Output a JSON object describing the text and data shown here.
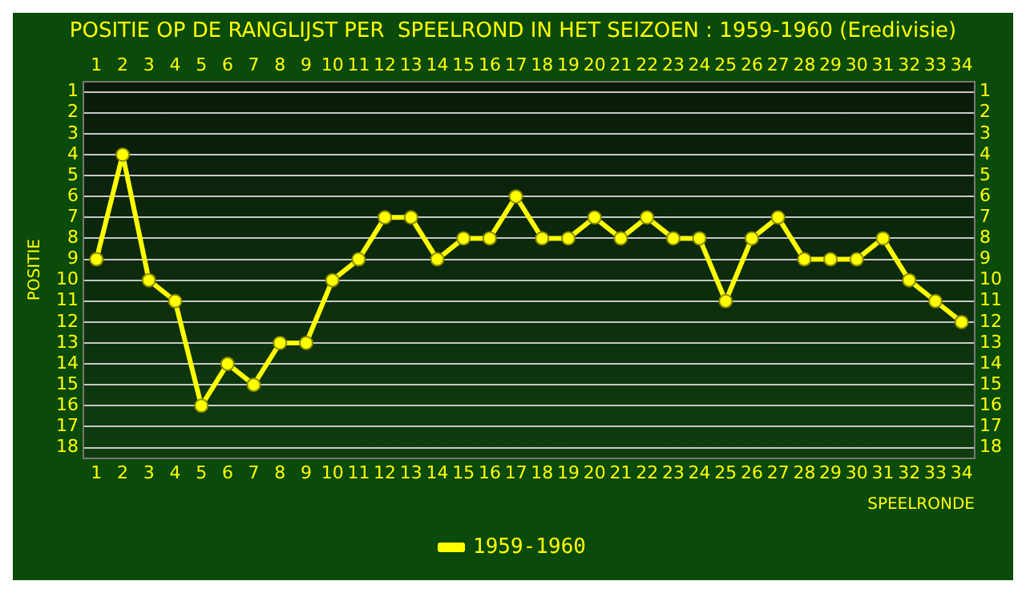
{
  "chart_data": {
    "type": "line",
    "title": "POSITIE OP DE RANGLIJST PER  SPEELROND IN HET SEIZOEN : 1959-1960 (Eredivisie)",
    "xlabel": "SPEELRONDE",
    "ylabel": "POSITIE",
    "x": [
      1,
      2,
      3,
      4,
      5,
      6,
      7,
      8,
      9,
      10,
      11,
      12,
      13,
      14,
      15,
      16,
      17,
      18,
      19,
      20,
      21,
      22,
      23,
      24,
      25,
      26,
      27,
      28,
      29,
      30,
      31,
      32,
      33,
      34
    ],
    "series": [
      {
        "name": "1959-1960",
        "color": "#ffff00",
        "values": [
          9,
          4,
          10,
          11,
          16,
          14,
          15,
          13,
          13,
          10,
          9,
          7,
          7,
          9,
          8,
          8,
          6,
          8,
          8,
          7,
          8,
          7,
          8,
          8,
          11,
          8,
          7,
          9,
          9,
          9,
          8,
          10,
          11,
          12
        ]
      }
    ],
    "xlim": [
      0.5,
      34.5
    ],
    "xticks": [
      1,
      2,
      3,
      4,
      5,
      6,
      7,
      8,
      9,
      10,
      11,
      12,
      13,
      14,
      15,
      16,
      17,
      18,
      19,
      20,
      21,
      22,
      23,
      24,
      25,
      26,
      27,
      28,
      29,
      30,
      31,
      32,
      33,
      34
    ],
    "x2lim": [
      0.5,
      34.5
    ],
    "x2ticks": [
      1,
      2,
      3,
      4,
      5,
      6,
      7,
      8,
      9,
      10,
      11,
      12,
      13,
      14,
      15,
      16,
      17,
      18,
      19,
      20,
      21,
      22,
      23,
      24,
      25,
      26,
      27,
      28,
      29,
      30,
      31,
      32,
      33,
      34
    ],
    "ylim": [
      18.5,
      0.5
    ],
    "yticks": [
      1,
      2,
      3,
      4,
      5,
      6,
      7,
      8,
      9,
      10,
      11,
      12,
      13,
      14,
      15,
      16,
      17,
      18
    ],
    "y2lim": [
      18.5,
      0.5
    ],
    "y2ticks": [
      1,
      2,
      3,
      4,
      5,
      6,
      7,
      8,
      9,
      10,
      11,
      12,
      13,
      14,
      15,
      16,
      17,
      18
    ],
    "grid": "y",
    "legend": "bottom",
    "marker": "circle",
    "line_style": "solid"
  }
}
